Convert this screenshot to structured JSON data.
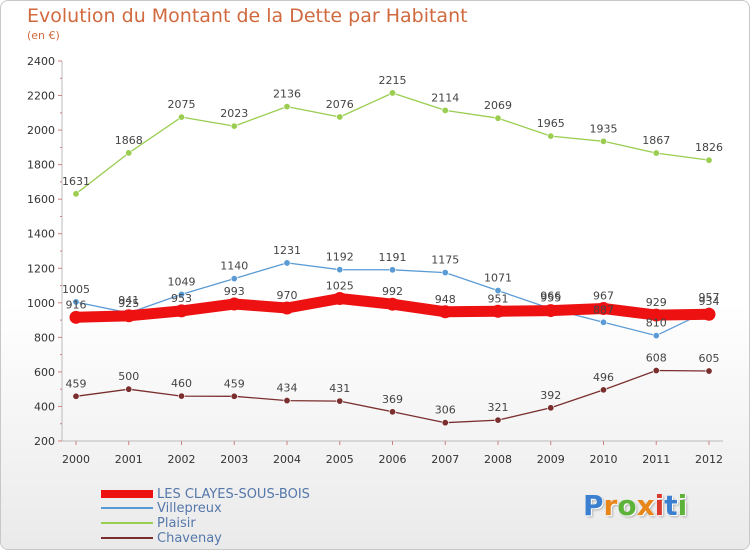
{
  "header": {
    "title": "Evolution du Montant de la Dette par Habitant",
    "subtitle": "(en €)"
  },
  "logo": {
    "text": "Proxiti"
  },
  "chart_data": {
    "type": "line",
    "title": "Evolution du Montant de la Dette par Habitant",
    "subtitle": "(en €)",
    "x": [
      2000,
      2001,
      2002,
      2003,
      2004,
      2005,
      2006,
      2007,
      2008,
      2009,
      2010,
      2011,
      2012
    ],
    "x_tick_labels": [
      "2000",
      "2001",
      "2002",
      "2003",
      "2004",
      "2005",
      "2006",
      "2007",
      "2008",
      "2009",
      "2010",
      "2011",
      "2012"
    ],
    "ylim": [
      200,
      2400
    ],
    "y_ticks": [
      200,
      400,
      600,
      800,
      1000,
      1200,
      1400,
      1600,
      1800,
      2000,
      2200,
      2400
    ],
    "y_tick_labels": [
      "200",
      "400",
      "600",
      "800",
      "1000",
      "1200",
      "1400",
      "1600",
      "1800",
      "2000",
      "2200",
      "2400"
    ],
    "grid": false,
    "legend_position": "bottom-left",
    "series": [
      {
        "name": "LES CLAYES-SOUS-BOIS",
        "color": "#ee1111",
        "values": [
          916,
          925,
          953,
          993,
          970,
          1025,
          992,
          948,
          951,
          955,
          967,
          929,
          934
        ],
        "labels": [
          "916",
          "925",
          "953",
          "993",
          "970",
          "1025",
          "992",
          "948",
          "951",
          "955",
          "967",
          "929",
          "934"
        ]
      },
      {
        "name": "Villepreux",
        "color": "#5b9bd5",
        "values": [
          1005,
          941,
          1049,
          1140,
          1231,
          1192,
          1191,
          1175,
          1071,
          966,
          887,
          810,
          957
        ],
        "labels": [
          "1005",
          "941",
          "1049",
          "1140",
          "1231",
          "1192",
          "1191",
          "1175",
          "1071",
          "966",
          "887",
          "810",
          "957"
        ]
      },
      {
        "name": "Plaisir",
        "color": "#9acd50",
        "values": [
          1631,
          1868,
          2075,
          2023,
          2136,
          2076,
          2215,
          2114,
          2069,
          1965,
          1935,
          1867,
          1826
        ],
        "labels": [
          "1631",
          "1868",
          "2075",
          "2023",
          "2136",
          "2076",
          "2215",
          "2114",
          "2069",
          "1965",
          "1935",
          "1867",
          "1826"
        ]
      },
      {
        "name": "Chavenay",
        "color": "#7a2e2e",
        "values": [
          459,
          500,
          460,
          459,
          434,
          431,
          369,
          306,
          321,
          392,
          496,
          608,
          605
        ],
        "labels": [
          "459",
          "500",
          "460",
          "459",
          "434",
          "431",
          "369",
          "306",
          "321",
          "392",
          "496",
          "608",
          "605"
        ]
      }
    ]
  }
}
